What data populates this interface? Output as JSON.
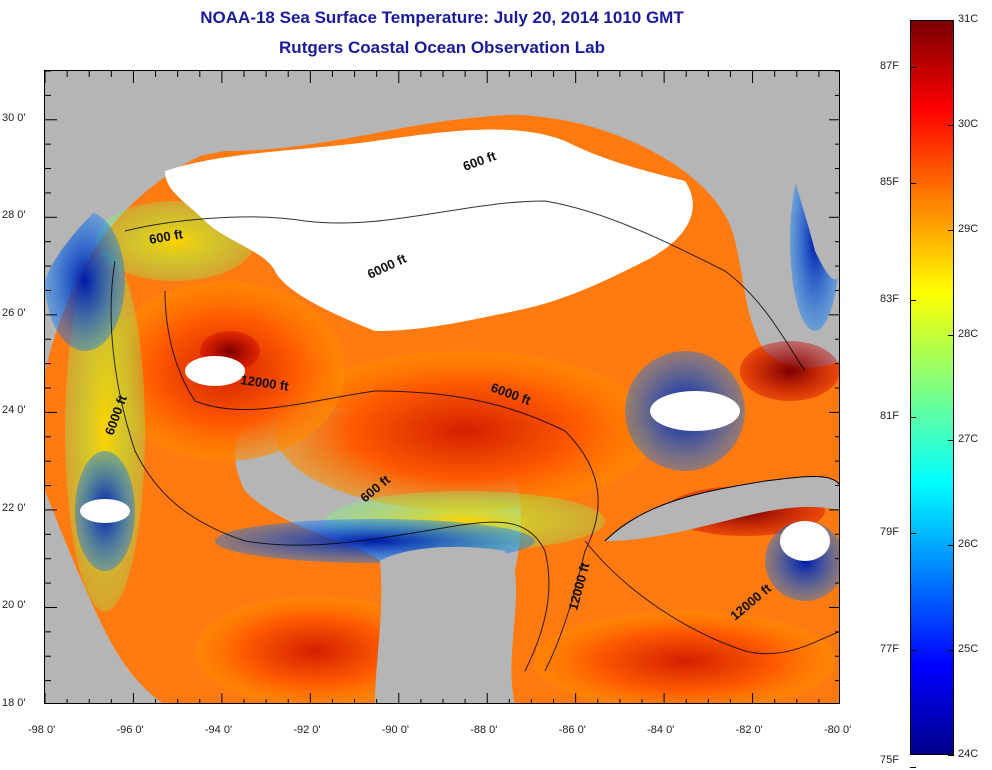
{
  "title": "NOAA-18 Sea Surface Temperature:  July 20, 2014 1010 GMT",
  "subtitle": "Rutgers Coastal Ocean Observation Lab",
  "map": {
    "lon_range": [
      -98,
      -80
    ],
    "lat_range": [
      18,
      31
    ],
    "lon_labels": [
      "-98 0'",
      "-96 0'",
      "-94 0'",
      "-92 0'",
      "-90 0'",
      "-88 0'",
      "-86 0'",
      "-84 0'",
      "-82 0'",
      "-80 0'"
    ],
    "lat_labels": [
      "18 0'",
      "20 0'",
      "22 0'",
      "24 0'",
      "26 0'",
      "28 0'",
      "30 0'"
    ],
    "contour_labels": [
      "600 ft",
      "600 ft",
      "6000 ft",
      "12000 ft",
      "6000 ft",
      "6000 ft",
      "600 ft",
      "12000 ft",
      "12000 ft"
    ],
    "colors": {
      "land": "#b5b5b5",
      "cloud": "#ffffff",
      "warm_max": "#7a0000",
      "cool_min": "#00008c"
    }
  },
  "colorbar": {
    "celsius_labels": [
      "31C",
      "30C",
      "29C",
      "28C",
      "27C",
      "26C",
      "25C",
      "24C"
    ],
    "fahrenheit_labels": [
      "87F",
      "85F",
      "83F",
      "81F",
      "79F",
      "77F",
      "75F"
    ],
    "range_c": [
      24,
      31
    ],
    "colormap": "jet"
  }
}
